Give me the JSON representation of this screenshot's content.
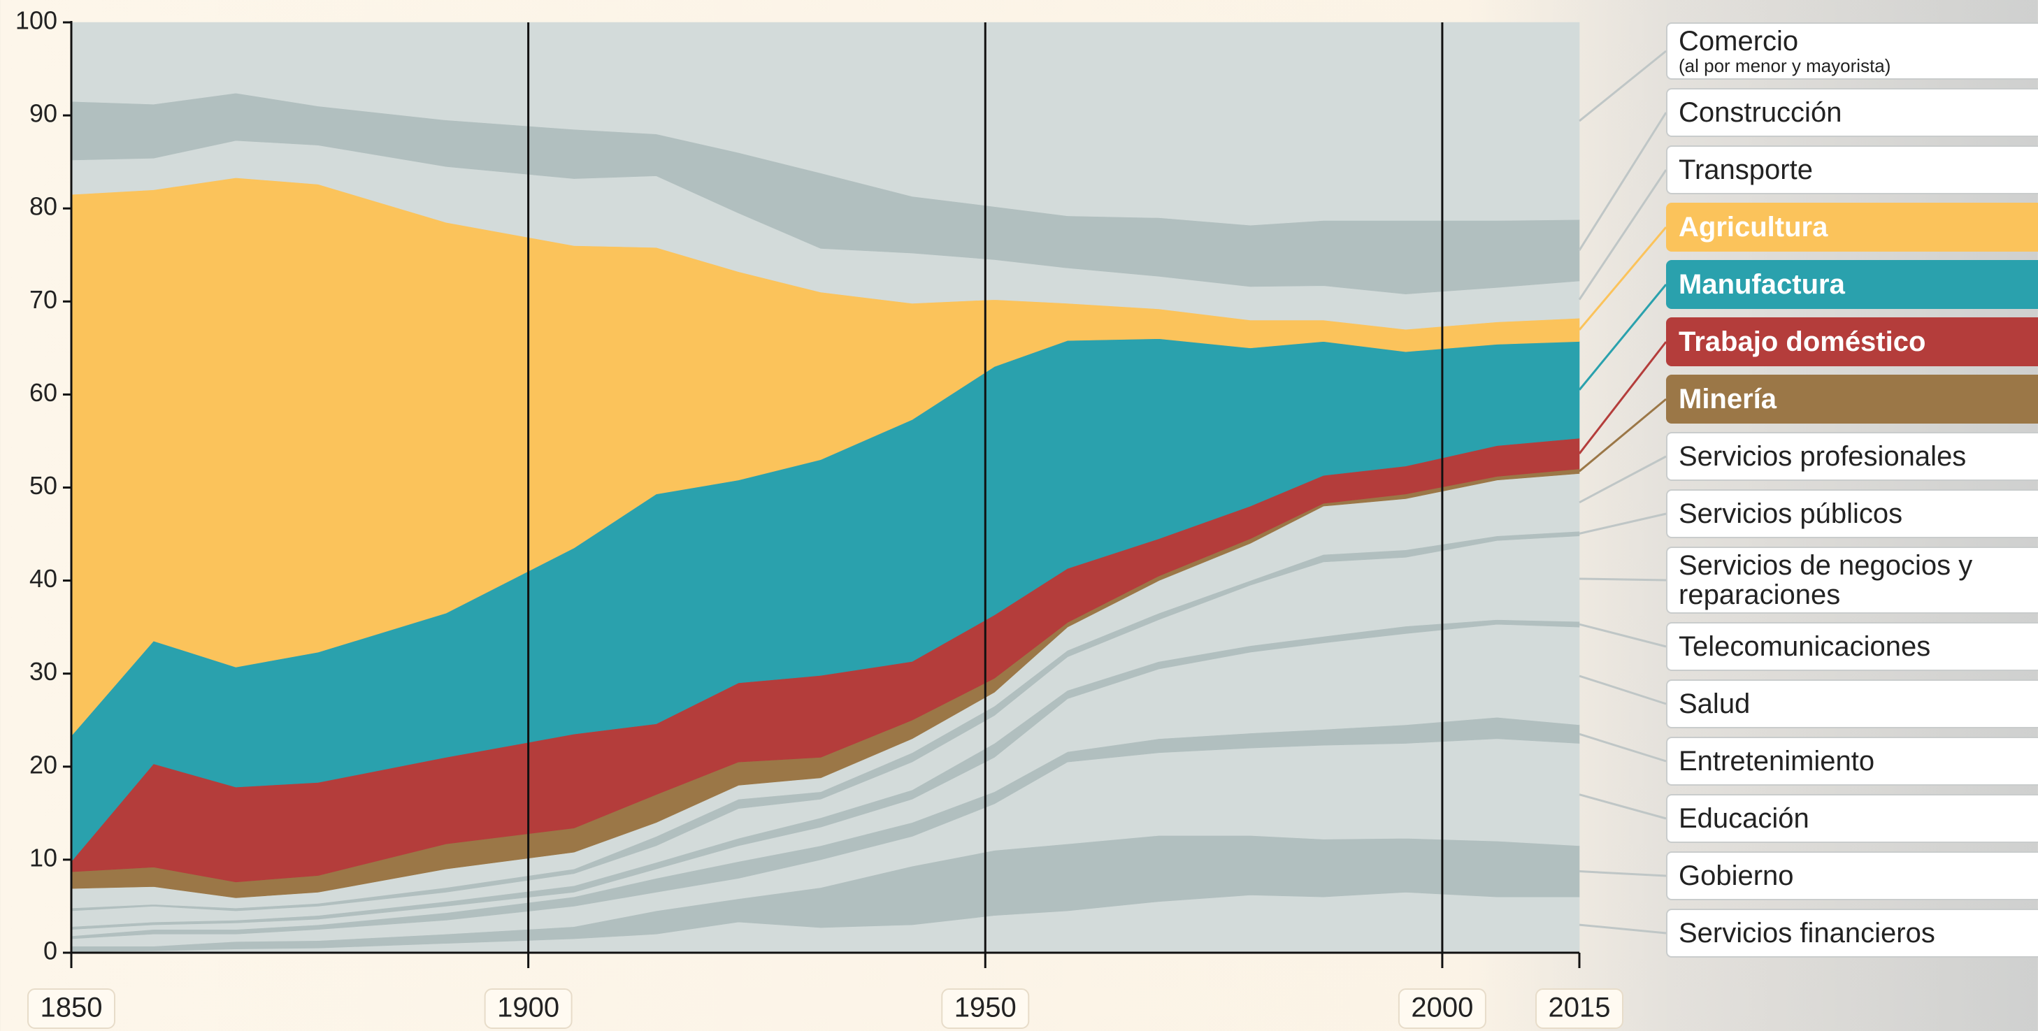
{
  "chart_data": {
    "type": "stacked-area",
    "x": [
      1850,
      1859,
      1868,
      1877,
      1891,
      1905,
      1914,
      1923,
      1932,
      1942,
      1951,
      1959,
      1969,
      1979,
      1987,
      1996,
      2006,
      2015
    ],
    "xlim": [
      1850,
      2015
    ],
    "xticks": [
      1850,
      1900,
      1950,
      2000,
      2015
    ],
    "ylim": [
      0,
      100
    ],
    "yticks": [
      0,
      10,
      20,
      30,
      40,
      50,
      60,
      70,
      80,
      90,
      100
    ],
    "x_grid": true,
    "series": [
      {
        "name": "Servicios financieros",
        "color": "#d3dbda",
        "values": [
          0.1,
          0.2,
          0.4,
          0.5,
          1.0,
          1.5,
          2,
          3.3,
          2.7,
          3,
          4,
          4.5,
          5.5,
          6.2,
          6,
          6.5,
          6,
          6
        ]
      },
      {
        "name": "Gobierno",
        "color": "#b1bfbf",
        "values": [
          0.6,
          0.5,
          0.8,
          0.8,
          1.0,
          1.3,
          2.5,
          2.5,
          4.3,
          6.3,
          7,
          7.2,
          7.1,
          6.4,
          6.2,
          5.8,
          6,
          5.5
        ]
      },
      {
        "name": "Educación",
        "color": "#d3dbda",
        "values": [
          0.8,
          1.3,
          0.8,
          1.2,
          1.5,
          2.2,
          2,
          2.2,
          3,
          3.2,
          5,
          8.8,
          8.9,
          9.4,
          10.1,
          10.2,
          11,
          11
        ]
      },
      {
        "name": "Entretenimiento",
        "color": "#b1bfbf",
        "values": [
          0.3,
          0.5,
          0.5,
          0.5,
          0.8,
          1,
          1.5,
          1.8,
          1.5,
          1.5,
          1.3,
          1.1,
          1.5,
          1.6,
          1.7,
          2,
          2.3,
          2
        ]
      },
      {
        "name": "Salud",
        "color": "#d3dbda",
        "values": [
          0.7,
          0.5,
          0.7,
          0.6,
          0.7,
          0.5,
          1,
          1.7,
          2,
          2.5,
          3.7,
          5.7,
          7.5,
          8.7,
          9.3,
          9.8,
          10,
          10.5
        ]
      },
      {
        "name": "Telecomunicaciones",
        "color": "#b1bfbf",
        "values": [
          0.3,
          0.3,
          0.3,
          0.4,
          0.5,
          0.7,
          0.7,
          0.8,
          1,
          1,
          1.5,
          0.9,
          0.8,
          0.7,
          0.7,
          0.8,
          0.5,
          0.6
        ]
      },
      {
        "name": "Servicios de negocios y reparaciones",
        "color": "#d3dbda",
        "values": [
          1.7,
          1.7,
          1.0,
          1.0,
          1.0,
          1.3,
          1.8,
          3.2,
          2.0,
          3.0,
          3.0,
          3.6,
          4.5,
          6.5,
          8.0,
          7.4,
          8.5,
          9.2
        ]
      },
      {
        "name": "Servicios públicos",
        "color": "#b1bfbf",
        "values": [
          0.3,
          0.2,
          0.3,
          0.3,
          0.5,
          0.5,
          1.0,
          1.0,
          0.8,
          1.0,
          1.0,
          0.7,
          0.7,
          0.5,
          0.8,
          0.8,
          0.5,
          0.5
        ]
      },
      {
        "name": "Servicios profesionales",
        "color": "#d3dbda",
        "values": [
          2.1,
          1.9,
          1.1,
          1.2,
          2.0,
          1.8,
          1.5,
          1.5,
          1.5,
          1.5,
          1.5,
          2.5,
          3.5,
          4.0,
          5.2,
          5.5,
          6.0,
          6.2
        ]
      },
      {
        "name": "Minería",
        "color": "#9b7747",
        "highlight": true,
        "values": [
          1.8,
          2.1,
          1.7,
          1.8,
          2.7,
          2.6,
          3.0,
          2.5,
          2.2,
          2.0,
          1.5,
          0.5,
          0.5,
          0.5,
          0.3,
          0.5,
          0.4,
          0.5
        ]
      },
      {
        "name": "Trabajo doméstico",
        "color": "#b43d3b",
        "highlight": true,
        "values": [
          1.1,
          11.1,
          10.2,
          10.0,
          9.3,
          10.1,
          7.6,
          8.5,
          8.8,
          6.3,
          6.8,
          5.8,
          4.0,
          3.5,
          3.0,
          3.0,
          3.3,
          3.3
        ]
      },
      {
        "name": "Manufactura",
        "color": "#2aa1ad",
        "highlight": true,
        "values": [
          13.5,
          13.2,
          12.9,
          14.0,
          15.5,
          20.0,
          24.7,
          21.8,
          23.2,
          26.0,
          26.7,
          24.5,
          21.5,
          17.0,
          14.4,
          12.3,
          10.9,
          10.4
        ]
      },
      {
        "name": "Agricultura",
        "color": "#fbc35b",
        "highlight": true,
        "values": [
          58.2,
          48.5,
          52.6,
          50.3,
          42.0,
          32.5,
          26.5,
          22.4,
          18.0,
          12.5,
          7.2,
          4.0,
          3.2,
          3.0,
          2.3,
          2.4,
          2.4,
          2.5
        ]
      },
      {
        "name": "Transporte",
        "color": "#d3dbda",
        "values": [
          3.7,
          3.4,
          4.0,
          4.2,
          6.0,
          7.2,
          7.7,
          6.3,
          4.7,
          5.4,
          4.3,
          3.8,
          3.5,
          3.6,
          3.7,
          3.8,
          3.7,
          4.0
        ]
      },
      {
        "name": "Construcción",
        "color": "#b1bfbf",
        "values": [
          6.3,
          5.8,
          5.1,
          4.2,
          5.0,
          5.3,
          4.5,
          6.5,
          8.1,
          6.1,
          5.7,
          5.6,
          6.3,
          6.6,
          7.0,
          7.9,
          7.2,
          6.6
        ]
      },
      {
        "name": "Comercio",
        "sublabel": "(al por menor y mayorista)",
        "color": "#d3dbda",
        "values": [
          8.5,
          8.8,
          7.6,
          9.0,
          10.5,
          11.5,
          12.0,
          14.0,
          16.2,
          18.7,
          19.8,
          20.8,
          21.0,
          21.8,
          21.3,
          21.3,
          21.3,
          21.2
        ]
      }
    ]
  }
}
